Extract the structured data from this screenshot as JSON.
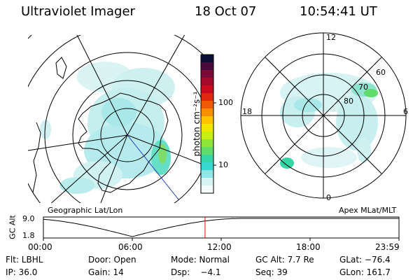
{
  "header": {
    "instrument": "Ultraviolet Imager",
    "date": "18 Oct 07",
    "time": "10:54:41 UT"
  },
  "left_panel": {
    "caption": "Geographic Lat/Lon"
  },
  "right_panel": {
    "caption": "Apex MLat/MLT",
    "mlt_labels": {
      "top": "12",
      "bottom": "0",
      "left": "18",
      "right": "6"
    },
    "lat_labels": [
      "80",
      "70",
      "60"
    ]
  },
  "colorbar": {
    "unit_label": "photon cm⁻²s⁻¹",
    "ticks": [
      "100",
      "10"
    ],
    "colors": [
      "#0b0f36",
      "#4a0b3c",
      "#7a0a35",
      "#a5082c",
      "#c80b1e",
      "#e1280f",
      "#f05a05",
      "#f98f00",
      "#ffc400",
      "#f2e700",
      "#c8ef12",
      "#8fe63a",
      "#5fdc6c",
      "#33d6a4",
      "#38d8cf",
      "#8fe6e6",
      "#d7f3f3",
      "#f3fafa"
    ]
  },
  "altitude_strip": {
    "ylabel": "GC Alt",
    "ymax": "9.0",
    "ymin": "1.8",
    "xticks": [
      "00:00",
      "06:00",
      "12:00",
      "18:00",
      "23:59"
    ],
    "current_marker_hour": 10.91,
    "line_color": "#ff0000"
  },
  "info": {
    "row1": {
      "flt": "Flt: LBHL",
      "door": "Door: Open",
      "mode": "Mode: Normal",
      "gcalt": "GC Alt: 7.7 Re",
      "glat": "GLat: −76.4"
    },
    "row2": {
      "ip": "IP: 36.0",
      "gain": "Gain: 14",
      "dsp": "Dsp:    −4.1",
      "seq": "Seq: 39",
      "glon": "GLon: 161.7"
    }
  }
}
